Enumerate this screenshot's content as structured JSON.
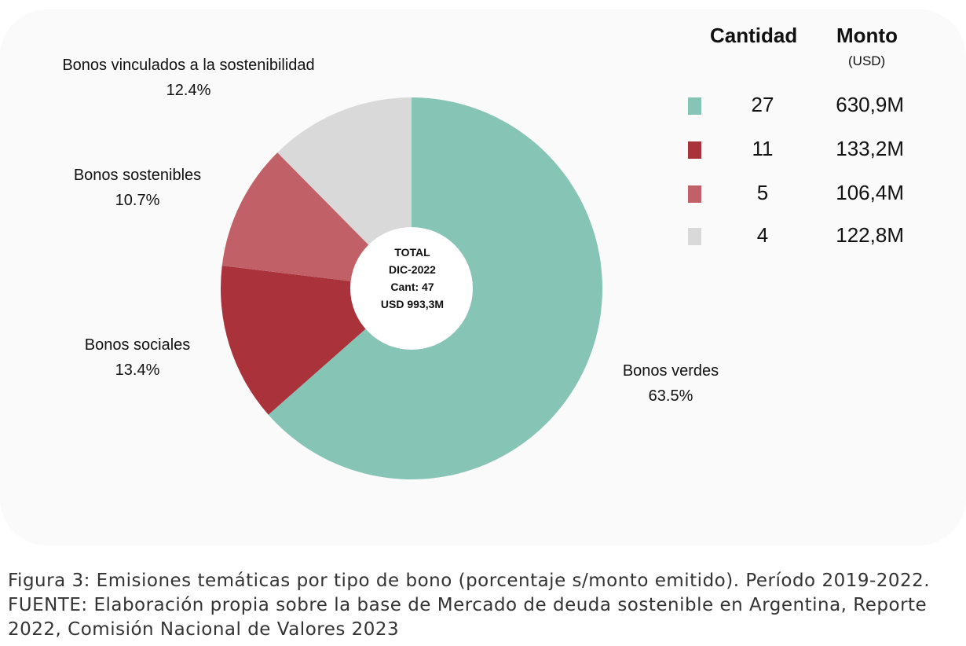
{
  "chart_data": {
    "type": "pie",
    "variant": "donut",
    "slices": [
      {
        "label": "Bonos verdes",
        "pct_label": "63.5%",
        "value": 63.5,
        "color": "#86c5b6"
      },
      {
        "label": "Bonos sociales",
        "pct_label": "13.4%",
        "value": 13.4,
        "color": "#aa333b"
      },
      {
        "label": "Bonos sostenibles",
        "pct_label": "10.7%",
        "value": 10.7,
        "color": "#c16066"
      },
      {
        "label": "Bonos vinculados a la sostenibilidad",
        "pct_label": "12.4%",
        "value": 12.4,
        "color": "#d9d9d9"
      }
    ],
    "center": [
      "TOTAL",
      "DIC-2022",
      "Cant: 47",
      "USD 993,3M"
    ],
    "legend_table": {
      "header_cantidad": "Cantidad",
      "header_monto": "Monto",
      "header_monto_unit": "(USD)",
      "rows": [
        {
          "color": "#86c5b6",
          "cantidad": "27",
          "monto": "630,9M"
        },
        {
          "color": "#aa333b",
          "cantidad": "11",
          "monto": "133,2M"
        },
        {
          "color": "#c16066",
          "cantidad": "5",
          "monto": "106,4M"
        },
        {
          "color": "#d9d9d9",
          "cantidad": "4",
          "monto": "122,8M"
        }
      ]
    }
  },
  "caption": "Figura 3: Emisiones temáticas por tipo de bono (porcentaje s/monto emitido). Período 2019-2022. FUENTE: Elaboración propia sobre la base de Mercado de deuda sostenible en Argentina, Reporte 2022, Comisión Nacional de Valores 2023"
}
